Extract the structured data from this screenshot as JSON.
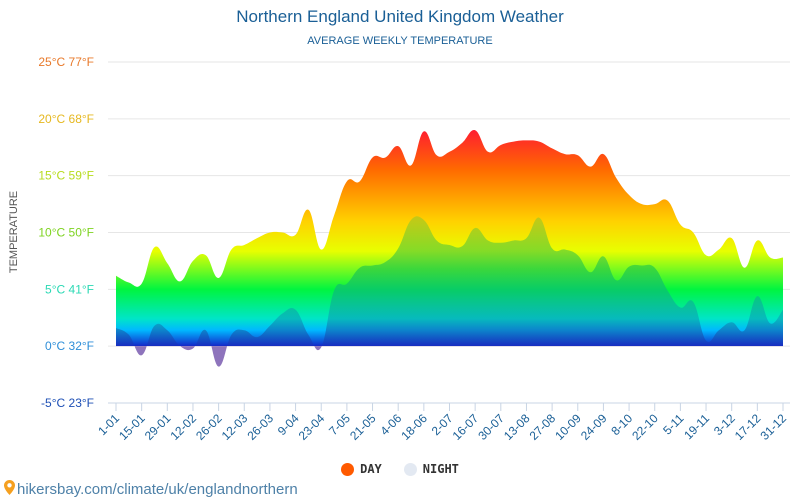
{
  "header": {
    "title": "Northern England United Kingdom Weather",
    "subtitle": "AVERAGE WEEKLY TEMPERATURE"
  },
  "legend": [
    {
      "label": "DAY",
      "color": "#ff5a00"
    },
    {
      "label": "NIGHT",
      "color": "#e3e9f2"
    }
  ],
  "footer": {
    "icon": "location-pin-icon",
    "text": "hikersbay.com/climate/uk/englandnorthern"
  },
  "chart_data": {
    "type": "area",
    "title": "Northern England United Kingdom Weather",
    "subtitle": "AVERAGE WEEKLY TEMPERATURE",
    "xlabel": "",
    "ylabel": "TEMPERATURE",
    "ylim": [
      -5,
      25
    ],
    "grid": true,
    "legend_position": "bottom-center",
    "y_ticks": [
      {
        "value": 25,
        "label": "25°C 77°F",
        "color": "#e8792a"
      },
      {
        "value": 20,
        "label": "20°C 68°F",
        "color": "#e6b820"
      },
      {
        "value": 15,
        "label": "15°C 59°F",
        "color": "#b7dc1e"
      },
      {
        "value": 10,
        "label": "10°C 50°F",
        "color": "#7ed321"
      },
      {
        "value": 5,
        "label": "5°C 41°F",
        "color": "#2bd9b4"
      },
      {
        "value": 0,
        "label": "0°C 32°F",
        "color": "#2e8ed8"
      },
      {
        "value": -5,
        "label": "-5°C 23°F",
        "color": "#1d4fb5"
      }
    ],
    "x_tick_labels": [
      "1-01",
      "15-01",
      "29-01",
      "12-02",
      "26-02",
      "12-03",
      "26-03",
      "9-04",
      "23-04",
      "7-05",
      "21-05",
      "4-06",
      "18-06",
      "2-07",
      "16-07",
      "30-07",
      "13-08",
      "27-08",
      "10-09",
      "24-09",
      "8-10",
      "22-10",
      "5-11",
      "19-11",
      "3-12",
      "17-12",
      "31-12"
    ],
    "x_weeks": 53,
    "series": [
      {
        "name": "DAY",
        "values": [
          6.2,
          5.6,
          5.5,
          8.7,
          7.3,
          5.7,
          7.5,
          8.0,
          6.0,
          8.5,
          8.9,
          9.5,
          10.0,
          10.0,
          9.8,
          12.0,
          8.5,
          11.5,
          14.5,
          14.5,
          16.6,
          16.6,
          17.6,
          15.9,
          18.9,
          16.8,
          17.1,
          17.9,
          19.0,
          17.1,
          17.7,
          18.0,
          18.1,
          18.0,
          17.4,
          16.9,
          16.8,
          15.8,
          16.9,
          14.8,
          13.3,
          12.5,
          12.5,
          12.8,
          10.7,
          10.0,
          8.0,
          8.5,
          9.5,
          6.9,
          9.3,
          7.8,
          7.8
        ]
      },
      {
        "name": "NIGHT",
        "values": [
          1.6,
          1.0,
          -0.8,
          1.8,
          1.4,
          0.0,
          -0.2,
          1.4,
          -1.8,
          1.0,
          1.4,
          0.8,
          1.8,
          2.9,
          3.2,
          1.0,
          -0.1,
          4.9,
          5.5,
          6.9,
          7.1,
          7.4,
          8.6,
          11.1,
          11.1,
          9.3,
          8.9,
          8.8,
          10.4,
          9.3,
          9.1,
          9.3,
          9.5,
          11.3,
          8.6,
          8.5,
          8.0,
          6.5,
          7.9,
          5.8,
          7.0,
          7.1,
          6.9,
          4.9,
          3.4,
          3.9,
          0.5,
          1.4,
          2.1,
          1.4,
          4.4,
          2.0,
          3.2
        ]
      }
    ]
  }
}
